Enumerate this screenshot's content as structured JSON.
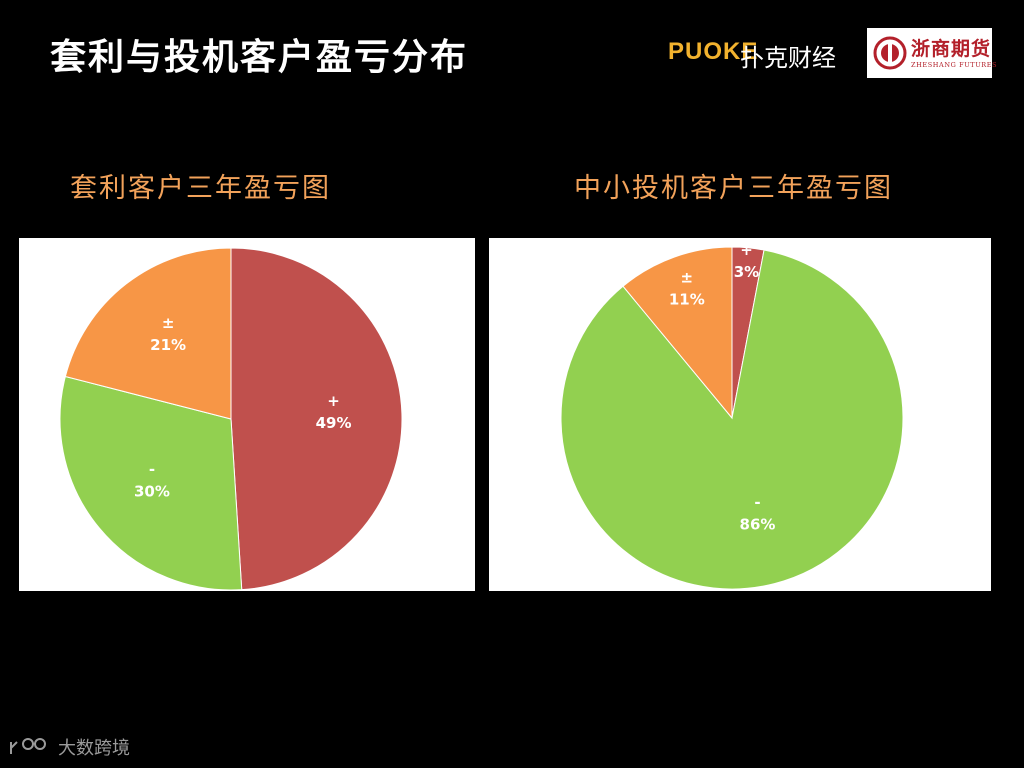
{
  "header": {
    "title": "套利与投机客户盈亏分布",
    "brand_puoke": "PUOKE",
    "brand_puoke_cn": "扑克财经",
    "brand_zheshang": "浙商期货",
    "brand_zheshang_sub": "ZHESHANG FUTURES"
  },
  "watermark": {
    "text": "大数跨境"
  },
  "chart_data": [
    {
      "type": "pie",
      "title": "套利客户三年盈亏图",
      "slices": [
        {
          "label": "+",
          "value": 49,
          "display": "49%",
          "color": "#c0504d"
        },
        {
          "label": "-",
          "value": 30,
          "display": "30%",
          "color": "#92d050"
        },
        {
          "label": "±",
          "value": 21,
          "display": "21%",
          "color": "#f79646"
        }
      ]
    },
    {
      "type": "pie",
      "title": "中小投机客户三年盈亏图",
      "slices": [
        {
          "label": "+",
          "value": 3,
          "display": "3%",
          "color": "#c0504d"
        },
        {
          "label": "-",
          "value": 86,
          "display": "86%",
          "color": "#92d050"
        },
        {
          "label": "±",
          "value": 11,
          "display": "11%",
          "color": "#f79646"
        }
      ]
    }
  ]
}
